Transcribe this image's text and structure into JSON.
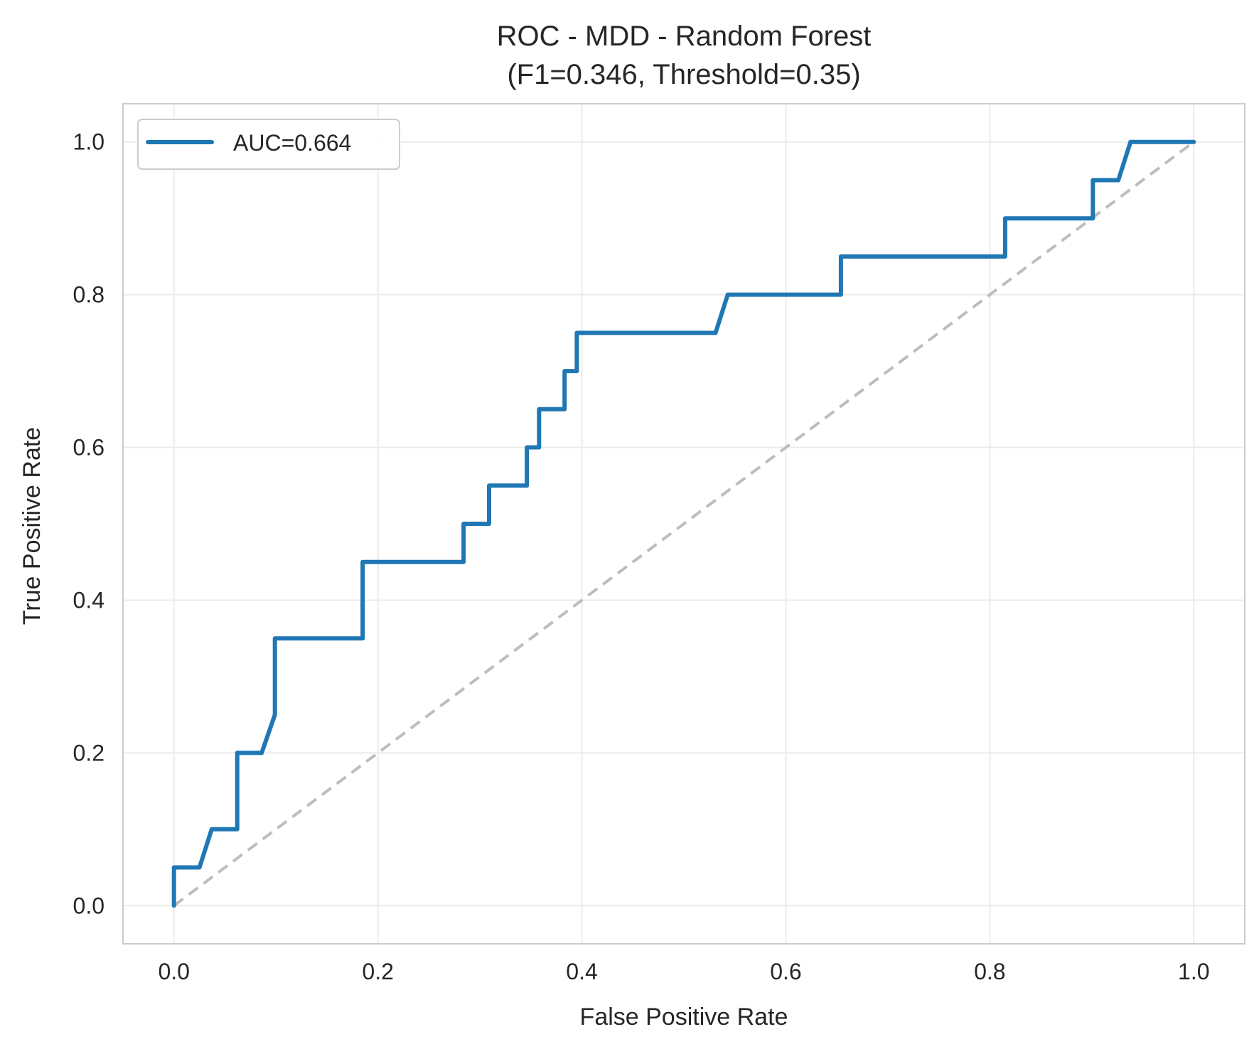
{
  "chart_data": {
    "type": "line",
    "title": "ROC - MDD - Random Forest",
    "subtitle": "(F1=0.346, Threshold=0.35)",
    "xlabel": "False Positive Rate",
    "ylabel": "True Positive Rate",
    "xlim": [
      -0.05,
      1.05
    ],
    "ylim": [
      -0.05,
      1.05
    ],
    "xticks": [
      "0.0",
      "0.2",
      "0.4",
      "0.6",
      "0.8",
      "1.0"
    ],
    "yticks": [
      "0.0",
      "0.2",
      "0.4",
      "0.6",
      "0.8",
      "1.0"
    ],
    "grid": true,
    "legend_position": "upper left",
    "series": [
      {
        "name": "AUC=0.664",
        "color": "#1f77b4",
        "x": [
          0.0,
          0.0,
          0.025,
          0.037,
          0.062,
          0.062,
          0.086,
          0.099,
          0.099,
          0.185,
          0.185,
          0.284,
          0.284,
          0.309,
          0.309,
          0.346,
          0.346,
          0.358,
          0.358,
          0.383,
          0.383,
          0.395,
          0.395,
          0.531,
          0.543,
          0.654,
          0.654,
          0.815,
          0.815,
          0.901,
          0.901,
          0.926,
          0.938,
          1.0
        ],
        "y": [
          0.0,
          0.05,
          0.05,
          0.1,
          0.1,
          0.2,
          0.2,
          0.25,
          0.35,
          0.35,
          0.45,
          0.45,
          0.5,
          0.5,
          0.55,
          0.55,
          0.6,
          0.6,
          0.65,
          0.65,
          0.7,
          0.7,
          0.75,
          0.75,
          0.8,
          0.8,
          0.85,
          0.85,
          0.9,
          0.9,
          0.95,
          0.95,
          1.0,
          1.0
        ]
      }
    ],
    "reference_line": {
      "color": "#bdbdbd",
      "style": "dashed",
      "x": [
        0,
        1
      ],
      "y": [
        0,
        1
      ]
    }
  }
}
